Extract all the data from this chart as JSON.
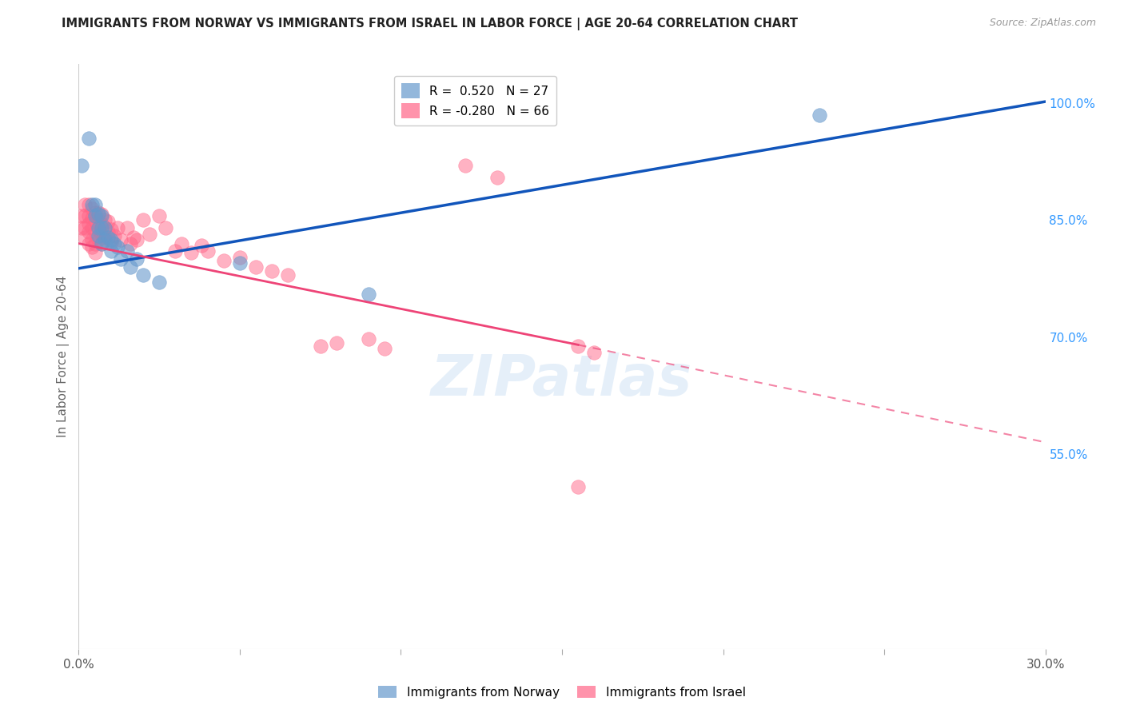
{
  "title": "IMMIGRANTS FROM NORWAY VS IMMIGRANTS FROM ISRAEL IN LABOR FORCE | AGE 20-64 CORRELATION CHART",
  "source": "Source: ZipAtlas.com",
  "ylabel": "In Labor Force | Age 20-64",
  "xlim": [
    0.0,
    0.3
  ],
  "ylim": [
    0.3,
    1.05
  ],
  "xtick_positions": [
    0.0,
    0.05,
    0.1,
    0.15,
    0.2,
    0.25,
    0.3
  ],
  "xticklabels": [
    "0.0%",
    "",
    "",
    "",
    "",
    "",
    "30.0%"
  ],
  "ytick_positions": [
    0.3,
    0.55,
    0.7,
    0.85,
    1.0
  ],
  "yticklabels": [
    "",
    "55.0%",
    "70.0%",
    "85.0%",
    "100.0%"
  ],
  "norway_color": "#6699CC",
  "israel_color": "#FF6688",
  "norway_R": 0.52,
  "norway_N": 27,
  "israel_R": -0.28,
  "israel_N": 66,
  "watermark": "ZIPatlas",
  "norway_line": [
    [
      0.0,
      0.788
    ],
    [
      0.3,
      1.002
    ]
  ],
  "israel_line_solid": [
    [
      0.0,
      0.82
    ],
    [
      0.155,
      0.69
    ]
  ],
  "israel_line_dash": [
    [
      0.155,
      0.69
    ],
    [
      0.3,
      0.565
    ]
  ],
  "norway_points": [
    [
      0.001,
      0.92
    ],
    [
      0.003,
      0.955
    ],
    [
      0.004,
      0.87
    ],
    [
      0.005,
      0.87
    ],
    [
      0.005,
      0.855
    ],
    [
      0.006,
      0.858
    ],
    [
      0.006,
      0.84
    ],
    [
      0.006,
      0.83
    ],
    [
      0.007,
      0.855
    ],
    [
      0.007,
      0.84
    ],
    [
      0.007,
      0.82
    ],
    [
      0.008,
      0.84
    ],
    [
      0.008,
      0.825
    ],
    [
      0.009,
      0.828
    ],
    [
      0.01,
      0.825
    ],
    [
      0.01,
      0.81
    ],
    [
      0.011,
      0.82
    ],
    [
      0.012,
      0.815
    ],
    [
      0.013,
      0.8
    ],
    [
      0.015,
      0.81
    ],
    [
      0.016,
      0.79
    ],
    [
      0.018,
      0.8
    ],
    [
      0.02,
      0.78
    ],
    [
      0.025,
      0.77
    ],
    [
      0.05,
      0.795
    ],
    [
      0.09,
      0.755
    ],
    [
      0.23,
      0.985
    ]
  ],
  "israel_points": [
    [
      0.001,
      0.855
    ],
    [
      0.001,
      0.84
    ],
    [
      0.002,
      0.87
    ],
    [
      0.002,
      0.855
    ],
    [
      0.002,
      0.84
    ],
    [
      0.002,
      0.828
    ],
    [
      0.003,
      0.87
    ],
    [
      0.003,
      0.855
    ],
    [
      0.003,
      0.845
    ],
    [
      0.003,
      0.835
    ],
    [
      0.003,
      0.82
    ],
    [
      0.004,
      0.865
    ],
    [
      0.004,
      0.852
    ],
    [
      0.004,
      0.84
    ],
    [
      0.004,
      0.825
    ],
    [
      0.004,
      0.815
    ],
    [
      0.005,
      0.86
    ],
    [
      0.005,
      0.848
    ],
    [
      0.005,
      0.835
    ],
    [
      0.005,
      0.82
    ],
    [
      0.005,
      0.808
    ],
    [
      0.006,
      0.86
    ],
    [
      0.006,
      0.85
    ],
    [
      0.006,
      0.838
    ],
    [
      0.006,
      0.825
    ],
    [
      0.007,
      0.858
    ],
    [
      0.007,
      0.845
    ],
    [
      0.007,
      0.832
    ],
    [
      0.007,
      0.82
    ],
    [
      0.008,
      0.85
    ],
    [
      0.008,
      0.84
    ],
    [
      0.008,
      0.828
    ],
    [
      0.009,
      0.848
    ],
    [
      0.009,
      0.835
    ],
    [
      0.01,
      0.838
    ],
    [
      0.01,
      0.822
    ],
    [
      0.011,
      0.83
    ],
    [
      0.012,
      0.84
    ],
    [
      0.013,
      0.825
    ],
    [
      0.015,
      0.84
    ],
    [
      0.016,
      0.82
    ],
    [
      0.017,
      0.828
    ],
    [
      0.018,
      0.825
    ],
    [
      0.02,
      0.85
    ],
    [
      0.022,
      0.832
    ],
    [
      0.025,
      0.855
    ],
    [
      0.027,
      0.84
    ],
    [
      0.03,
      0.81
    ],
    [
      0.032,
      0.82
    ],
    [
      0.035,
      0.808
    ],
    [
      0.038,
      0.818
    ],
    [
      0.04,
      0.81
    ],
    [
      0.045,
      0.798
    ],
    [
      0.05,
      0.802
    ],
    [
      0.055,
      0.79
    ],
    [
      0.06,
      0.785
    ],
    [
      0.065,
      0.78
    ],
    [
      0.075,
      0.688
    ],
    [
      0.08,
      0.692
    ],
    [
      0.09,
      0.698
    ],
    [
      0.095,
      0.685
    ],
    [
      0.12,
      0.92
    ],
    [
      0.13,
      0.905
    ],
    [
      0.155,
      0.688
    ],
    [
      0.16,
      0.68
    ],
    [
      0.155,
      0.508
    ]
  ]
}
